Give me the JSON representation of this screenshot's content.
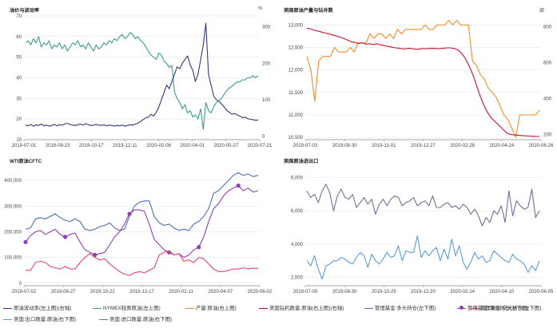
{
  "colors": {
    "vol": "#2e3a78",
    "wti": "#3a9e86",
    "prod": "#f28c28",
    "rig": "#c8102e",
    "mmLong": "#4d6fb3",
    "mmNet": "#8e3fb5",
    "mmShort": "#e8446a",
    "exp": "#5b9bd5",
    "imp": "#7b6b97",
    "grid": "#e6e6e6",
    "axis": "#888888"
  },
  "panels": {
    "tl": {
      "title": "油价与波动率",
      "unit": "%"
    },
    "tr": {
      "title": "美国原油产量与钻井数",
      "unit": "部"
    },
    "bl": {
      "title": "WTI原油CFTC"
    },
    "br": {
      "title": "美国原油进出口"
    }
  },
  "legend": [
    {
      "key": "vol",
      "label": "原油波动率(左上图)(右轴)"
    },
    {
      "key": "wti",
      "label": "NYMEX轻质原油(左上图)"
    },
    {
      "key": "prod",
      "label": "产量:原油(右上图)"
    },
    {
      "key": "rig",
      "label": "美国钻机数量:原油(右上图)(右轴)"
    },
    {
      "key": "mmLong",
      "label": "管理基金:多头持仓(左下图)"
    },
    {
      "key": "mmNet",
      "label": "管理基金:净头持仓(左下图)",
      "marker": true
    },
    {
      "key": "mmShort",
      "label": "管理基金:空头持仓(左下图)"
    },
    {
      "key": "exp",
      "label": "美国:出口数量:原油(右下图)"
    },
    {
      "key": "imp",
      "label": "美国:进口数量:原油(右下图)"
    }
  ],
  "chart_data": [
    {
      "id": "tl",
      "type": "line",
      "title": "油价与波动率",
      "x_ticks": [
        "2019-07-01",
        "2019-08-23",
        "2019-10-17",
        "2019-12-11",
        "2020-02-06",
        "2020-04-01",
        "2020-05-27",
        "2020-07-21"
      ],
      "y_left": {
        "ticks": [
          10,
          20,
          30,
          40,
          50,
          60,
          70
        ],
        "range": [
          10,
          70
        ]
      },
      "y_right": {
        "ticks": [
          0,
          100,
          200,
          300
        ],
        "range": [
          -10,
          330
        ],
        "unit": "%"
      },
      "series": [
        {
          "key": "wti",
          "name": "NYMEX轻质原油",
          "axis": "left",
          "values": [
            57,
            58,
            56,
            59,
            57,
            60,
            55,
            57,
            56,
            58,
            54,
            56,
            55,
            57,
            54,
            56,
            53,
            55,
            57,
            56,
            58,
            55,
            56,
            54,
            57,
            55,
            53,
            56,
            54,
            55,
            57,
            56,
            58,
            57,
            59,
            58,
            60,
            61,
            59,
            60,
            62,
            61,
            59,
            60,
            58,
            57,
            55,
            53,
            51,
            50,
            49,
            52,
            51,
            48,
            47,
            45,
            46,
            33,
            30,
            28,
            25,
            27,
            23,
            24,
            21,
            22,
            20,
            25,
            15,
            28,
            24,
            23,
            26,
            28,
            29,
            30,
            32,
            34,
            35,
            36,
            37,
            38,
            38,
            39,
            39,
            40,
            40,
            41,
            40,
            41
          ]
        },
        {
          "key": "vol",
          "name": "原油波动率",
          "axis": "right",
          "values": [
            30,
            28,
            32,
            27,
            31,
            29,
            33,
            28,
            30,
            27,
            29,
            32,
            28,
            31,
            30,
            33,
            35,
            32,
            30,
            29,
            31,
            33,
            30,
            34,
            31,
            29,
            30,
            32,
            30,
            29,
            31,
            28,
            30,
            29,
            27,
            29,
            28,
            30,
            27,
            29,
            31,
            30,
            33,
            35,
            40,
            45,
            50,
            52,
            60,
            55,
            65,
            80,
            100,
            120,
            140,
            130,
            150,
            170,
            190,
            185,
            200,
            210,
            220,
            195,
            180,
            150,
            170,
            210,
            250,
            310,
            170,
            140,
            110,
            100,
            95,
            88,
            80,
            70,
            65,
            60,
            62,
            58,
            55,
            50,
            52,
            48,
            46,
            45,
            43,
            44
          ]
        }
      ]
    },
    {
      "id": "tr",
      "type": "line",
      "title": "美国原油产量与钻井数",
      "x_ticks": [
        "2019-07-03",
        "2019-08-30",
        "2019-11-01",
        "2019-12-27",
        "2020-02-28",
        "2020-04-24",
        "2020-06-26"
      ],
      "y_left": {
        "ticks": [
          10500,
          11000,
          11500,
          12000,
          12500,
          13000
        ],
        "range": [
          10450,
          13200
        ]
      },
      "y_right": {
        "ticks": [
          200,
          400,
          600,
          800
        ],
        "range": [
          170,
          860
        ],
        "unit": "部"
      },
      "series": [
        {
          "key": "prod",
          "name": "产量:原油",
          "axis": "left",
          "values": [
            12300,
            12000,
            11300,
            12200,
            12300,
            12300,
            12300,
            12500,
            12400,
            12400,
            12400,
            12500,
            12400,
            12600,
            12600,
            12600,
            12800,
            12700,
            12800,
            12800,
            12700,
            12800,
            12700,
            12900,
            12800,
            12900,
            12900,
            12900,
            12900,
            12900,
            13000,
            12900,
            12900,
            13000,
            13000,
            13000,
            13100,
            13000,
            13100,
            13000,
            13000,
            13000,
            12200,
            12100,
            11900,
            11800,
            11600,
            11500,
            11400,
            11200,
            11000,
            10900,
            10700,
            10500,
            11000,
            11000,
            11000,
            11000,
            11000,
            11100
          ]
        },
        {
          "key": "rig",
          "name": "美国钻机数量:原油",
          "axis": "right",
          "values": [
            792,
            788,
            780,
            776,
            770,
            764,
            760,
            754,
            748,
            742,
            735,
            726,
            716,
            712,
            706,
            710,
            702,
            705,
            700,
            705,
            698,
            695,
            690,
            686,
            682,
            680,
            676,
            678,
            680,
            676,
            674,
            678,
            678,
            678,
            680,
            678,
            678,
            680,
            682,
            682,
            678,
            670,
            650,
            620,
            580,
            530,
            470,
            410,
            360,
            320,
            290,
            270,
            250,
            230,
            210,
            200,
            197,
            195,
            193,
            192,
            190,
            189,
            188,
            188
          ]
        }
      ]
    },
    {
      "id": "bl",
      "type": "line",
      "title": "WTI原油CFTC",
      "x_ticks": [
        "2019-07-02",
        "2019-08-27",
        "2019-10-22",
        "2019-12-17",
        "2020-02-11",
        "2020-04-07",
        "2020-06-02"
      ],
      "y_left": {
        "ticks": [
          0,
          100000,
          200000,
          300000,
          400000
        ],
        "range": [
          -10000,
          450000
        ]
      },
      "series": [
        {
          "key": "mmLong",
          "name": "管理基金:多头持仓",
          "axis": "left",
          "values": [
            210000,
            215000,
            250000,
            255000,
            250000,
            260000,
            270000,
            255000,
            245000,
            240000,
            250000,
            240000,
            210000,
            205000,
            210000,
            220000,
            225000,
            235000,
            215000,
            205000,
            210000,
            260000,
            300000,
            315000,
            320000,
            320000,
            260000,
            235000,
            225000,
            230000,
            215000,
            205000,
            210000,
            205000,
            230000,
            240000,
            260000,
            290000,
            350000,
            360000,
            380000,
            400000,
            420000,
            430000,
            420000,
            425000,
            415000,
            420000
          ]
        },
        {
          "key": "mmNet",
          "name": "管理基金:净头持仓",
          "axis": "left",
          "marker_indices": [
            0,
            8,
            14,
            21,
            29,
            35,
            43
          ],
          "values": [
            160000,
            185000,
            200000,
            205000,
            190000,
            200000,
            210000,
            190000,
            180000,
            190000,
            195000,
            160000,
            130000,
            120000,
            110000,
            115000,
            120000,
            150000,
            180000,
            200000,
            230000,
            270000,
            285000,
            285000,
            280000,
            230000,
            170000,
            150000,
            130000,
            120000,
            110000,
            115000,
            100000,
            110000,
            130000,
            140000,
            180000,
            240000,
            290000,
            310000,
            340000,
            360000,
            370000,
            380000,
            360000,
            370000,
            355000,
            360000
          ]
        },
        {
          "key": "mmShort",
          "name": "管理基金:空头持仓",
          "axis": "left",
          "values": [
            50000,
            50000,
            80000,
            85000,
            80000,
            65000,
            60000,
            55000,
            65000,
            55000,
            55000,
            80000,
            100000,
            115000,
            100000,
            90000,
            95000,
            75000,
            60000,
            45000,
            35000,
            30000,
            40000,
            45000,
            40000,
            50000,
            60000,
            110000,
            120000,
            125000,
            110000,
            115000,
            85000,
            90000,
            80000,
            100000,
            95000,
            75000,
            55000,
            45000,
            45000,
            50000,
            55000,
            55000,
            60000,
            55000,
            58000,
            57000
          ]
        }
      ]
    },
    {
      "id": "br",
      "type": "line",
      "title": "美国原油进出口",
      "x_ticks": [
        "2019-07-05",
        "2019-08-30",
        "2019-10-25",
        "2019-12-20",
        "2020-02-14",
        "2020-04-10",
        "2020-06-05"
      ],
      "y_left": {
        "ticks": [
          2000,
          4000,
          6000,
          8000
        ],
        "range": [
          1500,
          8600
        ]
      },
      "series": [
        {
          "key": "imp",
          "name": "美国:进口数量:原油",
          "axis": "left",
          "values": [
            7200,
            6800,
            7000,
            6500,
            7200,
            7600,
            7100,
            6000,
            6900,
            7300,
            6800,
            6700,
            7000,
            6200,
            6500,
            6800,
            6400,
            6700,
            5800,
            6400,
            6700,
            6300,
            6700,
            6900,
            6800,
            6300,
            6500,
            6600,
            6800,
            6300,
            6500,
            6600,
            6300,
            6900,
            6200,
            6200,
            6400,
            6500,
            6200,
            6300,
            6100,
            6400,
            6200,
            5800,
            6100,
            5700,
            5100,
            5600,
            5300,
            6000,
            5800,
            6300,
            5300,
            7200,
            5700,
            6600,
            6300,
            6100,
            6200,
            7300,
            5600,
            6000
          ]
        },
        {
          "key": "exp",
          "name": "美国:出口数量:原油",
          "axis": "left",
          "values": [
            3000,
            2700,
            3300,
            2500,
            1900,
            2700,
            2800,
            3000,
            3000,
            3200,
            3100,
            2900,
            2800,
            3200,
            3500,
            3300,
            2600,
            3400,
            3000,
            2800,
            3100,
            3500,
            3200,
            3300,
            3900,
            3000,
            3600,
            3500,
            3500,
            4500,
            3200,
            3600,
            3300,
            3600,
            3800,
            3000,
            3700,
            3100,
            4300,
            3300,
            3900,
            2900,
            2500,
            2900,
            3500,
            3100,
            3300,
            2900,
            3000,
            3600,
            3400,
            3200,
            3000,
            2900,
            3400,
            3100,
            3000,
            2800,
            2300,
            2700,
            2400,
            3000
          ]
        }
      ]
    }
  ]
}
